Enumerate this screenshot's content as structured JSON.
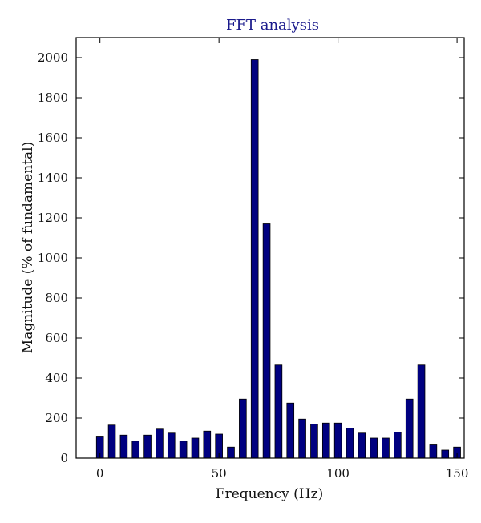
{
  "chart_data": {
    "type": "bar",
    "title": "FFT analysis",
    "xlabel": "Frequency (Hz)",
    "ylabel": "Magnitude (% of fundamental)",
    "xlim": [
      -10,
      153
    ],
    "ylim": [
      0,
      2100
    ],
    "xticks": [
      0,
      50,
      100,
      150
    ],
    "yticks": [
      0,
      200,
      400,
      600,
      800,
      1000,
      1200,
      1400,
      1600,
      1800,
      2000
    ],
    "bar_color": "#000080",
    "bar_edge_color": "#000000",
    "grid": false,
    "x": [
      0,
      5,
      10,
      15,
      20,
      25,
      30,
      35,
      40,
      45,
      50,
      55,
      60,
      65,
      70,
      75,
      80,
      85,
      90,
      95,
      100,
      105,
      110,
      115,
      120,
      125,
      130,
      135,
      140,
      145,
      150
    ],
    "values": [
      110,
      165,
      115,
      85,
      115,
      145,
      125,
      85,
      100,
      135,
      120,
      55,
      295,
      1990,
      1170,
      465,
      275,
      195,
      170,
      175,
      175,
      150,
      125,
      100,
      100,
      130,
      295,
      465,
      70,
      40,
      55
    ]
  }
}
